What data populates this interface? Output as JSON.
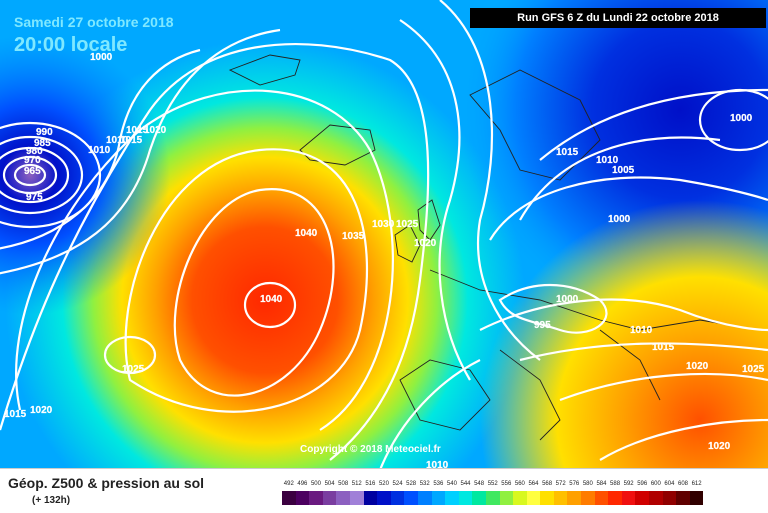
{
  "header": {
    "date": "Samedi 27 octobre 2018",
    "time": "20:00 locale",
    "run": "Run GFS 6 Z du Lundi 22 octobre 2018"
  },
  "copyright": "Copyright © 2018 Meteociel.fr",
  "legend": {
    "title": "Géop. Z500 & pression au sol",
    "forecast": "(+ 132h)",
    "scale": [
      {
        "v": "492",
        "c": "#3b0040"
      },
      {
        "v": "496",
        "c": "#4c0060"
      },
      {
        "v": "500",
        "c": "#6a1a80"
      },
      {
        "v": "504",
        "c": "#7a3da0"
      },
      {
        "v": "508",
        "c": "#8c60c0"
      },
      {
        "v": "512",
        "c": "#a080d8"
      },
      {
        "v": "516",
        "c": "#0000a0"
      },
      {
        "v": "520",
        "c": "#0010c8"
      },
      {
        "v": "524",
        "c": "#0030e0"
      },
      {
        "v": "528",
        "c": "#0050ff"
      },
      {
        "v": "532",
        "c": "#0080ff"
      },
      {
        "v": "536",
        "c": "#00a8ff"
      },
      {
        "v": "540",
        "c": "#00d0ff"
      },
      {
        "v": "544",
        "c": "#00e8e0"
      },
      {
        "v": "548",
        "c": "#00e8a0"
      },
      {
        "v": "552",
        "c": "#40e860"
      },
      {
        "v": "556",
        "c": "#90f040"
      },
      {
        "v": "560",
        "c": "#d8f820"
      },
      {
        "v": "564",
        "c": "#ffff40"
      },
      {
        "v": "568",
        "c": "#ffe000"
      },
      {
        "v": "572",
        "c": "#ffc000"
      },
      {
        "v": "576",
        "c": "#ffa000"
      },
      {
        "v": "580",
        "c": "#ff7c00"
      },
      {
        "v": "584",
        "c": "#ff5000"
      },
      {
        "v": "588",
        "c": "#ff2800"
      },
      {
        "v": "592",
        "c": "#f01010"
      },
      {
        "v": "596",
        "c": "#d00000"
      },
      {
        "v": "600",
        "c": "#b00000"
      },
      {
        "v": "604",
        "c": "#900000"
      },
      {
        "v": "608",
        "c": "#600000"
      },
      {
        "v": "612",
        "c": "#300000"
      }
    ]
  },
  "isobar_labels": [
    "1000",
    "990",
    "985",
    "980",
    "970",
    "965",
    "975",
    "1010",
    "1015",
    "1020",
    "1015",
    "1010",
    "1040",
    "1035",
    "1030",
    "1025",
    "1020",
    "1040",
    "1025",
    "1015",
    "1020",
    "1015",
    "1010",
    "1005",
    "1000",
    "1000",
    "995",
    "1010",
    "1015",
    "1020",
    "1025",
    "1020",
    "1010",
    "1000",
    "995"
  ]
}
